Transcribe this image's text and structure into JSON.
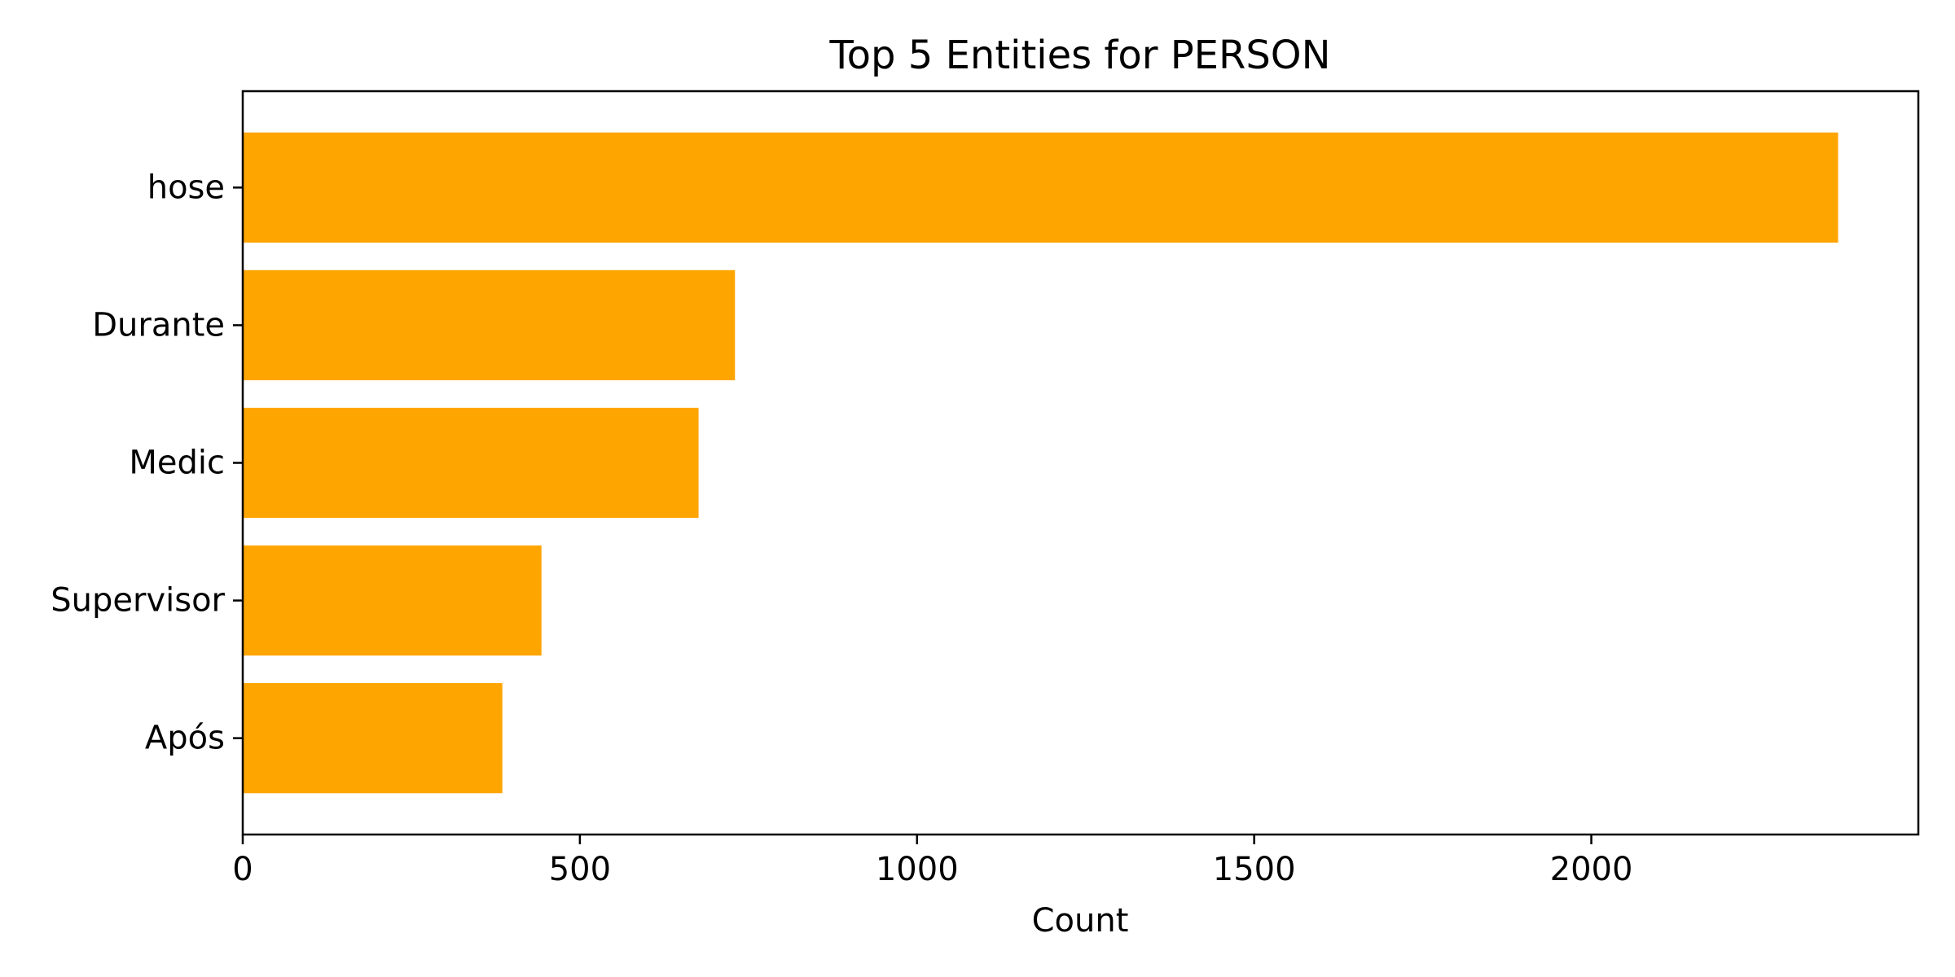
{
  "chart_data": {
    "type": "bar",
    "orientation": "horizontal",
    "title": "Top 5 Entities for PERSON",
    "xlabel": "Count",
    "ylabel": "",
    "categories": [
      "hose",
      "Durante",
      "Medic",
      "Supervisor",
      "Após"
    ],
    "values": [
      2366,
      730,
      676,
      443,
      385
    ],
    "xlim": [
      0,
      2485
    ],
    "xticks": [
      0,
      500,
      1000,
      1500,
      2000
    ],
    "grid": false,
    "legend": "none",
    "bar_color": "#FFA500"
  }
}
